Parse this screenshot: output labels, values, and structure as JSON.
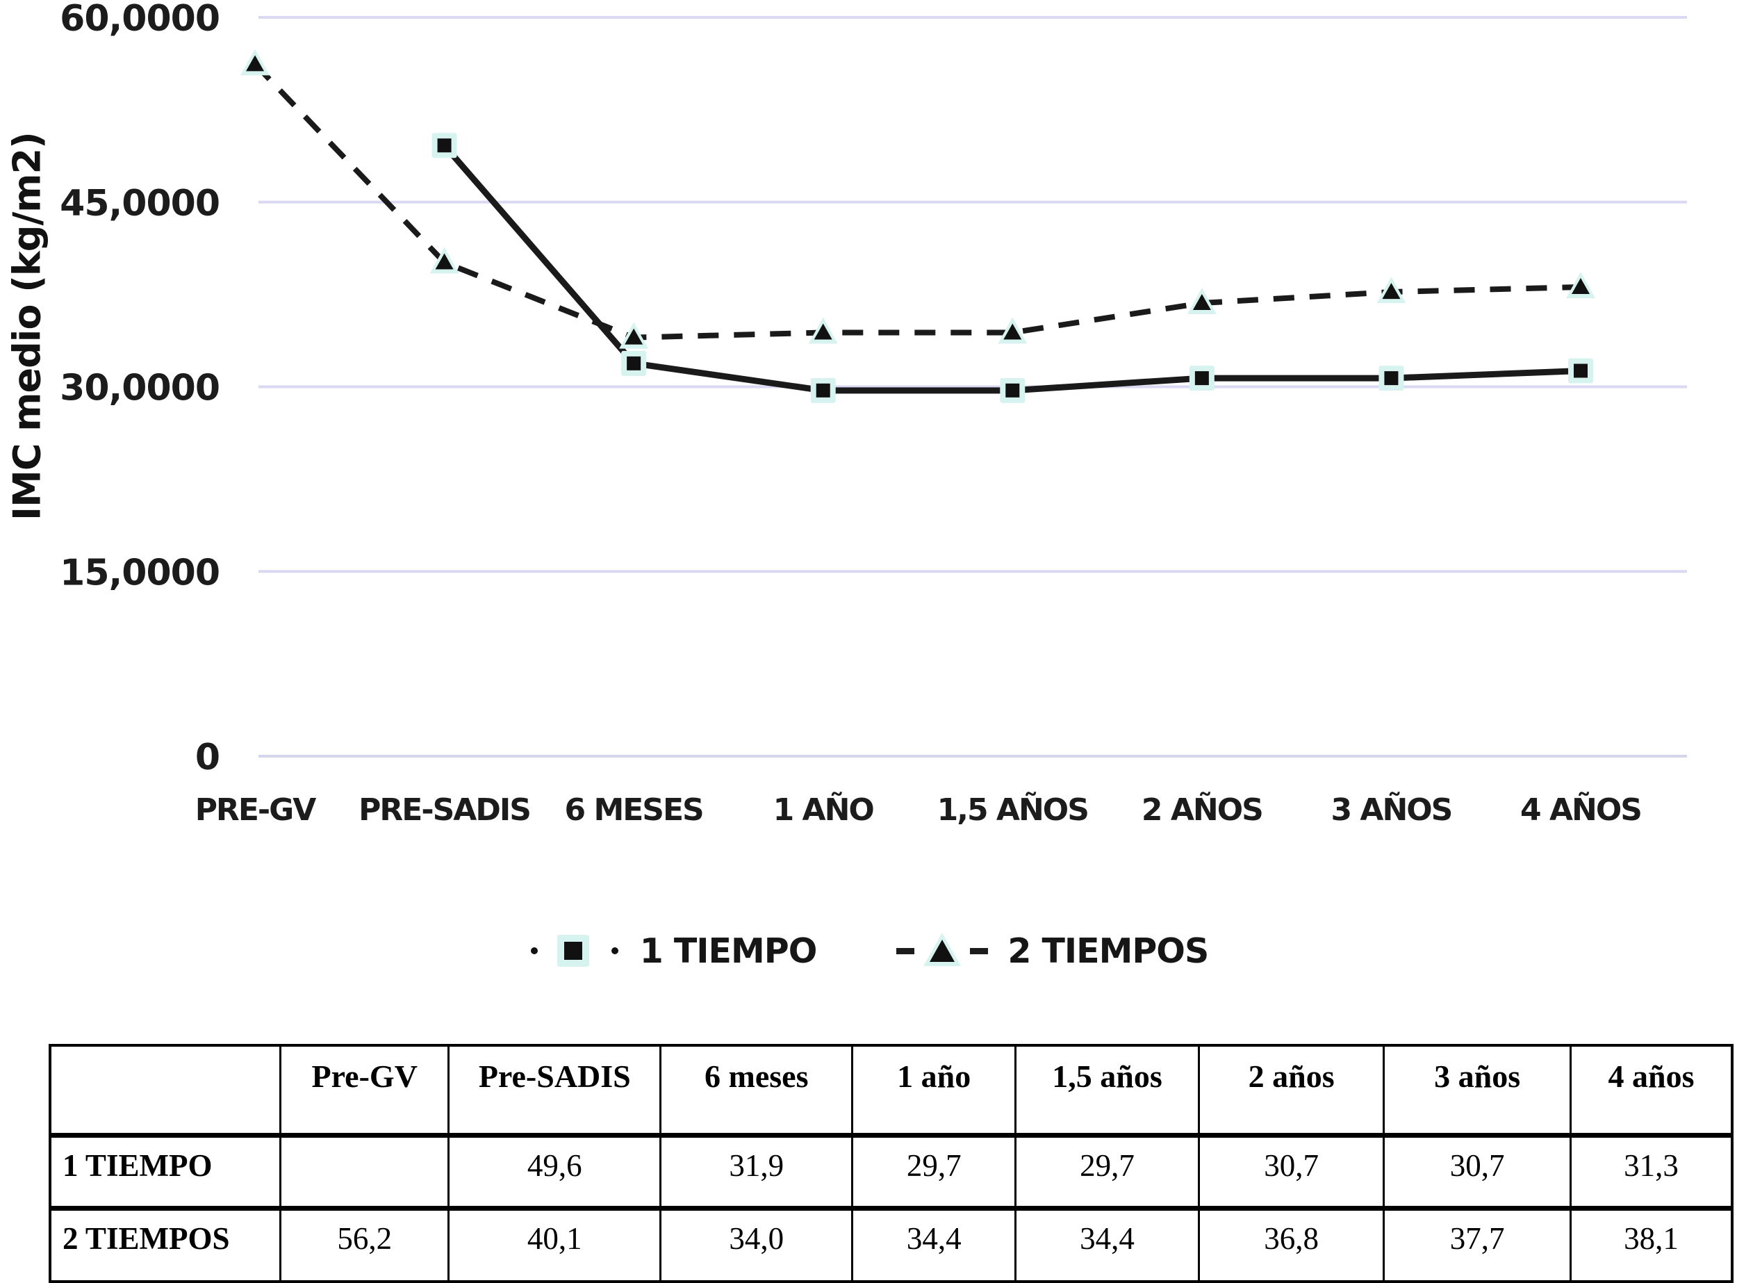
{
  "chart_data": {
    "type": "line",
    "title": "",
    "ylabel": "IMC medio (kg/m2)",
    "xlabel": "",
    "ylim": [
      0,
      60
    ],
    "grid": true,
    "legend_position": "bottom",
    "categories": [
      "PRE-GV",
      "PRE-SADIS",
      "6 MESES",
      "1 AÑO",
      "1,5 AÑOS",
      "2 AÑOS",
      "3 AÑOS",
      "4 AÑOS"
    ],
    "y_ticks": [
      {
        "value": 60,
        "label": "60,0000"
      },
      {
        "value": 45,
        "label": "45,0000"
      },
      {
        "value": 30,
        "label": "30,0000"
      },
      {
        "value": 15,
        "label": "15,0000"
      },
      {
        "value": 0,
        "label": "0"
      }
    ],
    "series": [
      {
        "name": "1 TIEMPO",
        "marker": "square",
        "line_style": "solid",
        "values": [
          null,
          49.6,
          31.9,
          29.7,
          29.7,
          30.7,
          30.7,
          31.3
        ]
      },
      {
        "name": "2 TIEMPOS",
        "marker": "triangle",
        "line_style": "dashed",
        "values": [
          56.2,
          40.1,
          34.0,
          34.4,
          34.4,
          36.8,
          37.7,
          38.1
        ]
      }
    ],
    "colors": {
      "line": "#1a1a1a",
      "marker": "#111111",
      "marker_halo": "#d7f3f0",
      "gridline": "#d9d9f3",
      "baseline": "#d5d5ec",
      "text": "#1c1c1c"
    }
  },
  "legend": {
    "items": [
      {
        "label": "1 TIEMPO",
        "marker": "square"
      },
      {
        "label": "2 TIEMPOS",
        "marker": "triangle"
      }
    ]
  },
  "table": {
    "col_headers": [
      "",
      "Pre-GV",
      "Pre-SADIS",
      "6 meses",
      "1 año",
      "1,5 años",
      "2 años",
      "3 años",
      "4 años"
    ],
    "rows": [
      {
        "label": "1 TIEMPO",
        "values": [
          "",
          "49,6",
          "31,9",
          "29,7",
          "29,7",
          "30,7",
          "30,7",
          "31,3"
        ]
      },
      {
        "label": "2 TIEMPOS",
        "values": [
          "56,2",
          "40,1",
          "34,0",
          "34,4",
          "34,4",
          "36,8",
          "37,7",
          "38,1"
        ]
      }
    ]
  }
}
